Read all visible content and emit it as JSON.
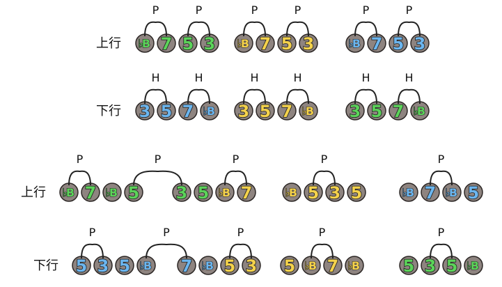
{
  "colors": {
    "green": "#5cd35a",
    "yellow": "#f4d24c",
    "blue": "#6cb6ef",
    "disc": "#8e8480",
    "disc_edge": "#2b2624",
    "arc": "#222222"
  },
  "flat_symbol": "♭",
  "rows": [
    {
      "label": "上行",
      "groups": [
        {
          "notes": [
            {
              "t": "B",
              "f": true,
              "c": "green"
            },
            {
              "t": "7",
              "c": "green"
            },
            {
              "t": "5",
              "c": "green"
            },
            {
              "t": "3",
              "c": "green"
            }
          ],
          "arcs": [
            {
              "from": 0,
              "to": 1,
              "label": "P"
            },
            {
              "from": 2,
              "to": 3,
              "label": "P"
            }
          ]
        },
        {
          "notes": [
            {
              "t": "B",
              "f": true,
              "c": "yellow"
            },
            {
              "t": "7",
              "c": "yellow"
            },
            {
              "t": "5",
              "c": "yellow"
            },
            {
              "t": "3",
              "c": "yellow"
            }
          ],
          "arcs": [
            {
              "from": 0,
              "to": 1,
              "label": "P"
            },
            {
              "from": 2,
              "to": 3,
              "label": "P"
            }
          ]
        },
        {
          "notes": [
            {
              "t": "B",
              "f": true,
              "c": "blue"
            },
            {
              "t": "7",
              "c": "blue"
            },
            {
              "t": "5",
              "c": "blue"
            },
            {
              "t": "3",
              "c": "blue"
            }
          ],
          "arcs": [
            {
              "from": 0,
              "to": 1,
              "label": "P"
            },
            {
              "from": 2,
              "to": 3,
              "label": "P"
            }
          ]
        }
      ]
    },
    {
      "label": "下行",
      "groups": [
        {
          "notes": [
            {
              "t": "3",
              "c": "blue"
            },
            {
              "t": "5",
              "c": "blue"
            },
            {
              "t": "7",
              "c": "blue"
            },
            {
              "t": "B",
              "f": true,
              "c": "blue"
            }
          ],
          "arcs": [
            {
              "from": 0,
              "to": 1,
              "label": "H"
            },
            {
              "from": 2,
              "to": 3,
              "label": "H"
            }
          ]
        },
        {
          "notes": [
            {
              "t": "3",
              "c": "yellow"
            },
            {
              "t": "5",
              "c": "yellow"
            },
            {
              "t": "7",
              "c": "yellow"
            },
            {
              "t": "B",
              "f": true,
              "c": "yellow"
            }
          ],
          "arcs": [
            {
              "from": 0,
              "to": 1,
              "label": "H"
            },
            {
              "from": 2,
              "to": 3,
              "label": "H"
            }
          ]
        },
        {
          "notes": [
            {
              "t": "3",
              "c": "green"
            },
            {
              "t": "5",
              "c": "green"
            },
            {
              "t": "7",
              "c": "green"
            },
            {
              "t": "B",
              "f": true,
              "c": "green"
            }
          ],
          "arcs": [
            {
              "from": 0,
              "to": 1,
              "label": "H"
            },
            {
              "from": 2,
              "to": 3,
              "label": "H"
            }
          ]
        }
      ]
    },
    {
      "label": "上行",
      "groups": [
        {
          "notes": [
            {
              "t": "B",
              "f": true,
              "c": "green"
            },
            {
              "t": "7",
              "c": "green"
            },
            {
              "t": "B",
              "f": true,
              "c": "green"
            },
            {
              "t": "5",
              "c": "green"
            }
          ],
          "arcs": [
            {
              "from": 0,
              "to": 1,
              "label": "P"
            }
          ]
        },
        {
          "notes": [
            {
              "t": "3",
              "c": "green"
            },
            {
              "t": "5",
              "c": "green"
            },
            {
              "t": "B",
              "f": true,
              "c": "yellow"
            },
            {
              "t": "7",
              "c": "yellow"
            }
          ],
          "arcs": [
            {
              "from": 2,
              "to": 3,
              "label": "P"
            }
          ]
        },
        {
          "notes": [
            {
              "t": "B",
              "f": true,
              "c": "yellow"
            },
            {
              "t": "5",
              "c": "yellow"
            },
            {
              "t": "3",
              "c": "yellow"
            },
            {
              "t": "5",
              "c": "yellow"
            }
          ],
          "arcs": [
            {
              "from": 1,
              "to": 2,
              "label": "P"
            }
          ]
        },
        {
          "notes": [
            {
              "t": "B",
              "f": true,
              "c": "blue"
            },
            {
              "t": "7",
              "c": "blue"
            },
            {
              "t": "B",
              "f": true,
              "c": "blue"
            },
            {
              "t": "5",
              "c": "blue"
            }
          ],
          "arcs": [
            {
              "from": 1,
              "to": 2,
              "label": "P"
            }
          ]
        }
      ],
      "cross_arcs": [
        {
          "from": [
            0,
            3
          ],
          "to": [
            1,
            0
          ],
          "label": "P"
        }
      ]
    },
    {
      "label": "下行",
      "groups": [
        {
          "notes": [
            {
              "t": "5",
              "c": "blue"
            },
            {
              "t": "3",
              "c": "blue"
            },
            {
              "t": "5",
              "c": "blue"
            },
            {
              "t": "B",
              "f": true,
              "c": "blue"
            }
          ],
          "arcs": [
            {
              "from": 0,
              "to": 1,
              "label": "P"
            }
          ]
        },
        {
          "notes": [
            {
              "t": "7",
              "c": "blue"
            },
            {
              "t": "B",
              "f": true,
              "c": "blue"
            },
            {
              "t": "5",
              "c": "yellow"
            },
            {
              "t": "3",
              "c": "yellow"
            }
          ],
          "arcs": [
            {
              "from": 2,
              "to": 3,
              "label": "P"
            }
          ]
        },
        {
          "notes": [
            {
              "t": "5",
              "c": "yellow"
            },
            {
              "t": "B",
              "f": true,
              "c": "yellow"
            },
            {
              "t": "7",
              "c": "yellow"
            },
            {
              "t": "B",
              "f": true,
              "c": "yellow"
            }
          ],
          "arcs": [
            {
              "from": 1,
              "to": 2,
              "label": "P"
            }
          ]
        },
        {
          "notes": [
            {
              "t": "5",
              "c": "green"
            },
            {
              "t": "3",
              "c": "green"
            },
            {
              "t": "5",
              "c": "green"
            },
            {
              "t": "B",
              "f": true,
              "c": "green"
            }
          ],
          "arcs": [
            {
              "from": 1,
              "to": 2,
              "label": "P"
            }
          ]
        }
      ],
      "cross_arcs": [
        {
          "from": [
            0,
            3
          ],
          "to": [
            1,
            0
          ],
          "label": "P"
        }
      ]
    }
  ]
}
